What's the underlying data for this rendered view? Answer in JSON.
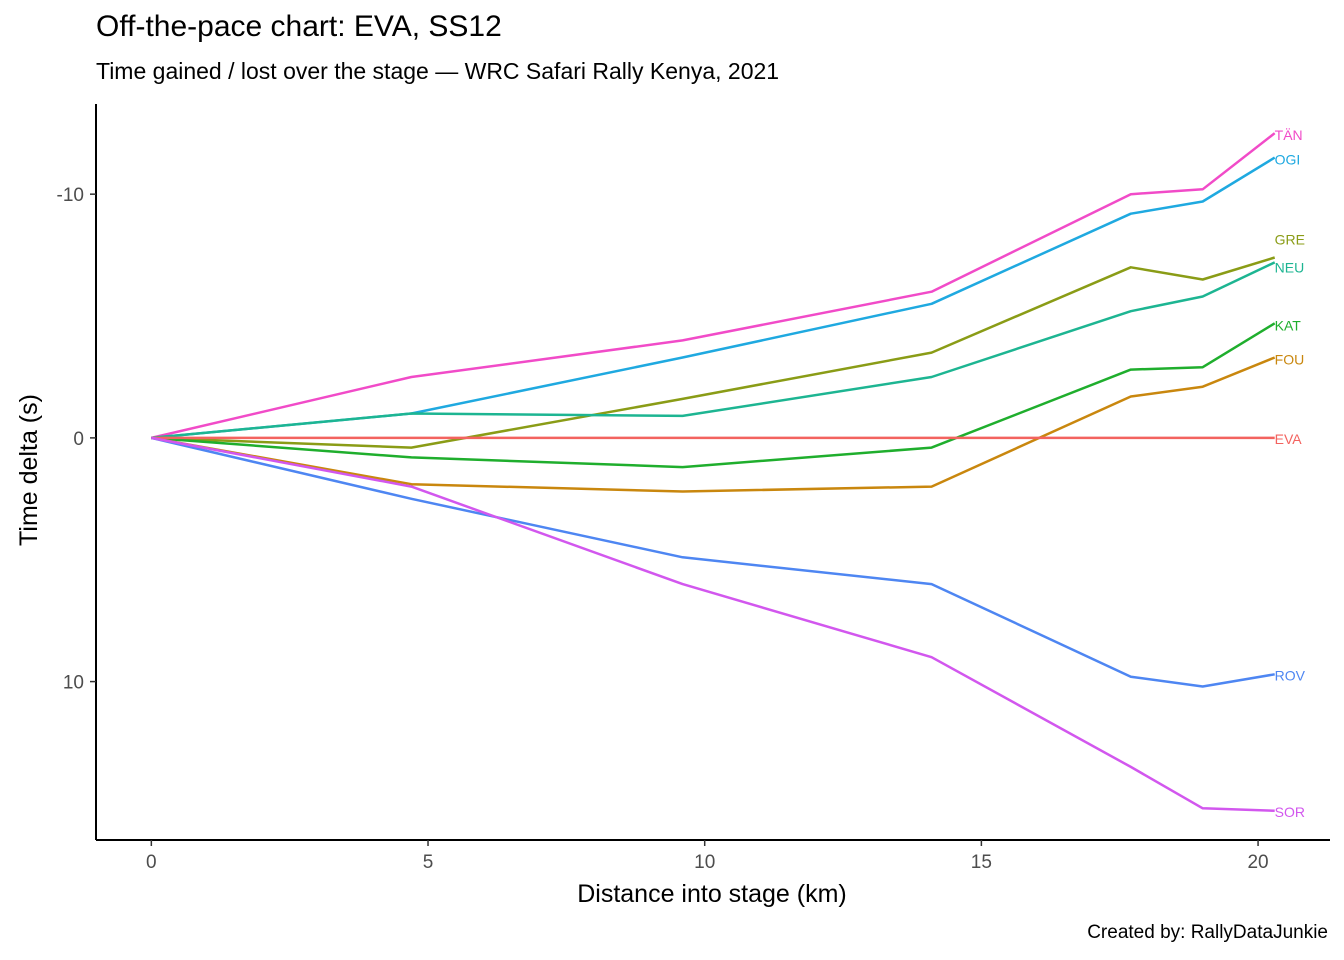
{
  "title": "Off-the-pace chart: EVA, SS12",
  "subtitle": "Time gained / lost over the stage — WRC Safari Rally Kenya, 2021",
  "caption": "Created by: RallyDataJunkie",
  "chart_data": {
    "type": "line",
    "title": "Off-the-pace chart: EVA, SS12",
    "subtitle": "Time gained / lost over the stage — WRC Safari Rally Kenya, 2021",
    "xlabel": "Distance into stage (km)",
    "ylabel": "Time delta (s)",
    "xlim": [
      -1,
      21.3
    ],
    "ylim": [
      -13.7,
      16.5
    ],
    "y_reversed": true,
    "x_ticks": [
      0,
      5,
      10,
      15,
      20
    ],
    "y_ticks": [
      -10,
      0,
      10
    ],
    "y_tick_labels": [
      "-10",
      "0",
      "10"
    ],
    "grid": false,
    "legend": "none (direct labels at line ends)",
    "x": [
      0,
      4.7,
      9.6,
      14.1,
      17.7,
      19.0,
      20.3
    ],
    "series": [
      {
        "name": "TÄN",
        "color": "#F14BC8",
        "values": [
          0,
          -2.5,
          -4.0,
          -6.0,
          -10.0,
          -10.2,
          -12.5
        ]
      },
      {
        "name": "OGI",
        "color": "#1FA9E0",
        "values": [
          0,
          -1.0,
          -3.3,
          -5.5,
          -9.2,
          -9.7,
          -11.5
        ]
      },
      {
        "name": "GRE",
        "color": "#8A9C16",
        "values": [
          0,
          0.4,
          -1.6,
          -3.5,
          -7.0,
          -6.5,
          -7.4
        ]
      },
      {
        "name": "NEU",
        "color": "#1DB592",
        "values": [
          0,
          -1.0,
          -0.9,
          -2.5,
          -5.2,
          -5.8,
          -7.2
        ]
      },
      {
        "name": "KAT",
        "color": "#1FAE2D",
        "values": [
          0,
          0.8,
          1.2,
          0.4,
          -2.8,
          -2.9,
          -4.7
        ]
      },
      {
        "name": "FOU",
        "color": "#C9870E",
        "values": [
          0,
          1.9,
          2.2,
          2.0,
          -1.7,
          -2.1,
          -3.3
        ]
      },
      {
        "name": "EVA",
        "color": "#F3635F",
        "values": [
          0,
          0,
          0,
          0,
          0,
          0,
          0
        ]
      },
      {
        "name": "ROV",
        "color": "#4E86F2",
        "values": [
          0,
          2.5,
          4.9,
          6.0,
          9.8,
          10.2,
          9.7
        ]
      },
      {
        "name": "SOR",
        "color": "#D257EE",
        "values": [
          0,
          2.0,
          6.0,
          9.0,
          13.5,
          15.2,
          15.3
        ]
      }
    ]
  }
}
